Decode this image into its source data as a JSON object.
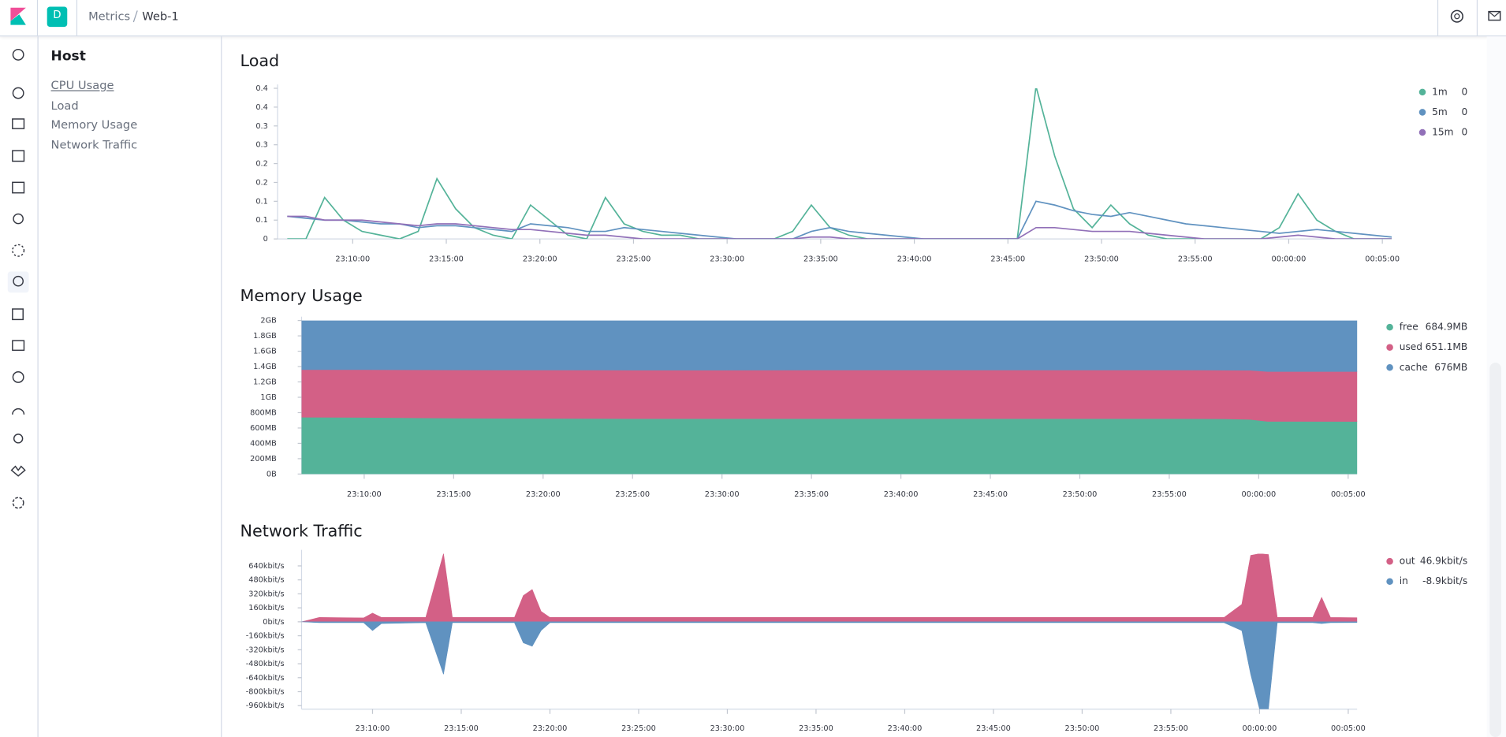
{
  "header": {
    "breadcrumbs": [
      "Metrics",
      "Web-1"
    ],
    "avatar": "D"
  },
  "sidebar": {
    "title": "Host",
    "items": [
      "CPU Usage",
      "Load",
      "Memory Usage",
      "Network Traffic"
    ]
  },
  "chart_data": [
    {
      "type": "line",
      "title": "Load",
      "x": [
        "23:06:30",
        "23:07:30",
        "23:08:30",
        "23:09:30",
        "23:10:30",
        "23:11:30",
        "23:12:30",
        "23:13:30",
        "23:14:30",
        "23:15:30",
        "23:16:30",
        "23:17:30",
        "23:18:30",
        "23:19:30",
        "23:20:30",
        "23:21:30",
        "23:22:30",
        "23:23:30",
        "23:24:30",
        "23:25:30",
        "23:26:30",
        "23:27:30",
        "23:28:30",
        "23:29:30",
        "23:30:30",
        "23:31:30",
        "23:32:30",
        "23:33:30",
        "23:34:30",
        "23:35:30",
        "23:36:30",
        "23:37:30",
        "23:38:30",
        "23:39:30",
        "23:40:30",
        "23:41:30",
        "23:42:30",
        "23:43:30",
        "23:44:30",
        "23:45:30",
        "23:46:30",
        "23:47:30",
        "23:48:30",
        "23:49:30",
        "23:50:30",
        "23:51:30",
        "23:52:30",
        "23:53:30",
        "23:54:30",
        "23:55:30",
        "23:56:30",
        "23:57:30",
        "23:58:30",
        "23:59:30",
        "00:00:30",
        "00:01:30",
        "00:02:30",
        "00:03:30",
        "00:04:30",
        "00:05:30"
      ],
      "series": [
        {
          "name": "1m",
          "color": "#54b399",
          "legend_value": "0",
          "values": [
            0,
            0,
            0.11,
            0.05,
            0.02,
            0.01,
            0,
            0.02,
            0.16,
            0.08,
            0.03,
            0.01,
            0,
            0.09,
            0.05,
            0.01,
            0,
            0.11,
            0.04,
            0.02,
            0.01,
            0.01,
            0,
            0,
            0,
            0,
            0,
            0.02,
            0.09,
            0.03,
            0.01,
            0,
            0,
            0,
            0,
            0,
            0,
            0,
            0,
            0,
            0.405,
            0.22,
            0.08,
            0.03,
            0.09,
            0.04,
            0.01,
            0,
            0,
            0,
            0,
            0,
            0,
            0.03,
            0.12,
            0.05,
            0.02,
            0,
            0,
            0
          ]
        },
        {
          "name": "5m",
          "color": "#6092c0",
          "legend_value": "0",
          "values": [
            0.06,
            0.055,
            0.05,
            0.05,
            0.045,
            0.04,
            0.04,
            0.03,
            0.035,
            0.035,
            0.03,
            0.025,
            0.02,
            0.04,
            0.035,
            0.03,
            0.02,
            0.02,
            0.03,
            0.025,
            0.02,
            0.015,
            0.01,
            0.005,
            0,
            0,
            0,
            0,
            0.02,
            0.03,
            0.02,
            0.015,
            0.01,
            0.005,
            0,
            0,
            0,
            0,
            0,
            0,
            0.1,
            0.09,
            0.075,
            0.065,
            0.06,
            0.07,
            0.06,
            0.05,
            0.04,
            0.035,
            0.03,
            0.025,
            0.02,
            0.015,
            0.02,
            0.025,
            0.02,
            0.015,
            0.01,
            0.005
          ]
        },
        {
          "name": "15m",
          "color": "#9170b8",
          "legend_value": "0",
          "values": [
            0.06,
            0.06,
            0.05,
            0.05,
            0.05,
            0.045,
            0.04,
            0.035,
            0.04,
            0.04,
            0.035,
            0.03,
            0.025,
            0.025,
            0.02,
            0.015,
            0.01,
            0.01,
            0.005,
            0,
            0,
            0,
            0,
            0,
            0,
            0,
            0,
            0,
            0.005,
            0.005,
            0,
            0,
            0,
            0,
            0,
            0,
            0,
            0,
            0,
            0,
            0.03,
            0.03,
            0.025,
            0.02,
            0.02,
            0.02,
            0.015,
            0.01,
            0.005,
            0,
            0,
            0,
            0,
            0.005,
            0.01,
            0.005,
            0,
            0,
            0,
            0
          ]
        }
      ],
      "xlim": [
        "23:06:30",
        "00:05:30"
      ],
      "xticks": [
        "23:10:00",
        "23:15:00",
        "23:20:00",
        "23:25:00",
        "23:30:00",
        "23:35:00",
        "23:40:00",
        "23:45:00",
        "23:50:00",
        "23:55:00",
        "00:00:00",
        "00:05:00"
      ],
      "ylim": [
        0,
        0.4
      ],
      "yticks": [
        0,
        {
          "value": 0.05,
          "label": "0.1"
        },
        0.1,
        {
          "value": 0.15,
          "label": "0.2"
        },
        0.2,
        {
          "value": 0.25,
          "label": "0.3"
        },
        0.3,
        {
          "value": 0.35,
          "label": "0.4"
        },
        0.4
      ]
    },
    {
      "type": "area",
      "stacked": true,
      "title": "Memory Usage",
      "x": [
        "23:06:30",
        "23:10:00",
        "23:15:00",
        "23:20:00",
        "23:25:00",
        "23:30:00",
        "23:35:00",
        "23:40:00",
        "23:45:00",
        "23:50:00",
        "23:55:00",
        "23:58:00",
        "23:59:30",
        "00:00:30",
        "00:05:30"
      ],
      "series": [
        {
          "name": "free",
          "color": "#54b399",
          "legend_value": "684.9MB",
          "values": [
            740,
            738,
            728,
            725,
            722,
            722,
            722,
            722,
            722,
            722,
            722,
            720,
            712,
            686,
            685
          ]
        },
        {
          "name": "used",
          "color": "#d36086",
          "legend_value": "651.1MB",
          "values": [
            620,
            622,
            628,
            630,
            632,
            632,
            633,
            633,
            633,
            633,
            633,
            634,
            640,
            650,
            651
          ]
        },
        {
          "name": "cache",
          "color": "#6092c0",
          "legend_value": "676MB",
          "values": [
            652,
            652,
            656,
            657,
            658,
            658,
            657,
            657,
            657,
            657,
            657,
            658,
            660,
            676,
            676
          ]
        }
      ],
      "xlim": [
        "23:06:30",
        "00:05:30"
      ],
      "xticks": [
        "23:10:00",
        "23:15:00",
        "23:20:00",
        "23:25:00",
        "23:30:00",
        "23:35:00",
        "23:40:00",
        "23:45:00",
        "23:50:00",
        "23:55:00",
        "00:00:00",
        "00:05:00"
      ],
      "ylim": [
        0,
        2000
      ],
      "yticks": [
        {
          "value": 0,
          "label": "0B"
        },
        {
          "value": 200,
          "label": "200MB"
        },
        {
          "value": 400,
          "label": "400MB"
        },
        {
          "value": 600,
          "label": "600MB"
        },
        {
          "value": 800,
          "label": "800MB"
        },
        {
          "value": 1000,
          "label": "1GB"
        },
        {
          "value": 1200,
          "label": "1.2GB"
        },
        {
          "value": 1400,
          "label": "1.4GB"
        },
        {
          "value": 1600,
          "label": "1.6GB"
        },
        {
          "value": 1800,
          "label": "1.8GB"
        },
        {
          "value": 2000,
          "label": "2GB"
        }
      ]
    },
    {
      "type": "area",
      "stacked": false,
      "title": "Network Traffic",
      "x": [
        "23:06:00",
        "23:07:00",
        "23:09:30",
        "23:10:00",
        "23:10:30",
        "23:13:00",
        "23:14:00",
        "23:14:30",
        "23:18:00",
        "23:18:30",
        "23:19:00",
        "23:19:30",
        "23:20:00",
        "23:40:00",
        "23:58:00",
        "23:59:00",
        "23:59:30",
        "00:00:00",
        "00:00:30",
        "00:01:00",
        "00:03:00",
        "00:03:30",
        "00:04:00",
        "00:05:30"
      ],
      "series": [
        {
          "name": "out",
          "color": "#d36086",
          "legend_value": "46.9kbit/s",
          "values": [
            0,
            50,
            45,
            100,
            50,
            50,
            780,
            50,
            50,
            300,
            370,
            120,
            50,
            50,
            50,
            200,
            760,
            780,
            770,
            50,
            50,
            280,
            50,
            46.9
          ]
        },
        {
          "name": "in",
          "color": "#6092c0",
          "legend_value": "-8.9kbit/s",
          "values": [
            0,
            -10,
            -10,
            -100,
            -20,
            -10,
            -600,
            -10,
            -10,
            -240,
            -280,
            -100,
            -10,
            -10,
            -10,
            -100,
            -600,
            -1000,
            -1000,
            -10,
            -10,
            -20,
            -10,
            -8.9
          ]
        }
      ],
      "xlim": [
        "23:06:00",
        "00:05:30"
      ],
      "xticks": [
        "23:10:00",
        "23:15:00",
        "23:20:00",
        "23:25:00",
        "23:30:00",
        "23:35:00",
        "23:40:00",
        "23:45:00",
        "23:50:00",
        "23:55:00",
        "00:00:00",
        "00:05:00"
      ],
      "ylim": [
        -1000,
        780
      ],
      "yticks": [
        {
          "value": 640,
          "label": "640kbit/s"
        },
        {
          "value": 480,
          "label": "480kbit/s"
        },
        {
          "value": 320,
          "label": "320kbit/s"
        },
        {
          "value": 160,
          "label": "160kbit/s"
        },
        {
          "value": 0,
          "label": "0bit/s"
        },
        {
          "value": -160,
          "label": "-160kbit/s"
        },
        {
          "value": -320,
          "label": "-320kbit/s"
        },
        {
          "value": -480,
          "label": "-480kbit/s"
        },
        {
          "value": -640,
          "label": "-640kbit/s"
        },
        {
          "value": -800,
          "label": "-800kbit/s"
        },
        {
          "value": -960,
          "label": "-960kbit/s"
        }
      ]
    }
  ]
}
